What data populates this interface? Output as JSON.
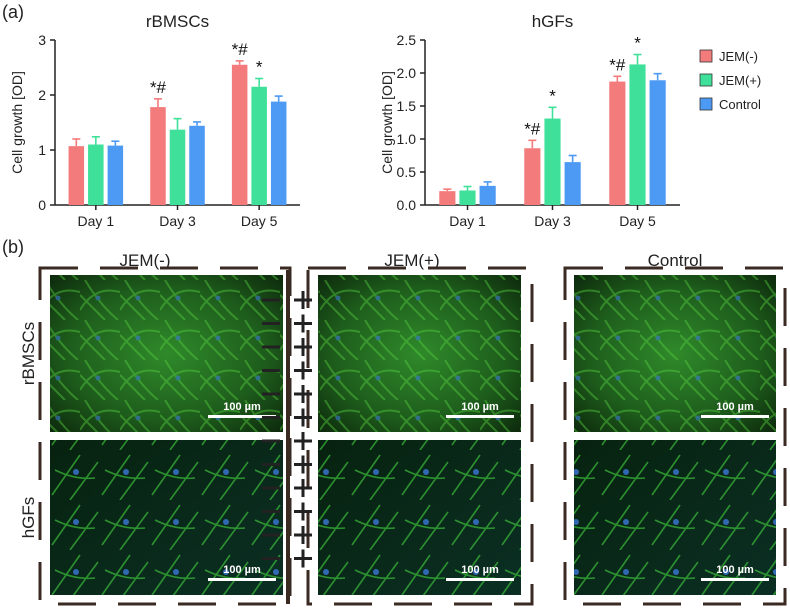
{
  "panel_a_label": "(a)",
  "chart_data": [
    {
      "type": "bar",
      "title": "rBMSCs",
      "y_label": "Cell growth [OD]",
      "categories": [
        "Day 1",
        "Day 3",
        "Day 5"
      ],
      "ylim": [
        0,
        3
      ],
      "yticks": [
        0,
        1,
        2,
        3
      ],
      "series": [
        {
          "color": "#f47b7b",
          "values": [
            1.07,
            1.78,
            2.55
          ],
          "errors": [
            0.13,
            0.15,
            0.07
          ],
          "annotations": [
            null,
            "*#",
            "*#"
          ]
        },
        {
          "color": "#3fe09a",
          "values": [
            1.1,
            1.37,
            2.15
          ],
          "errors": [
            0.14,
            0.2,
            0.15
          ],
          "annotations": [
            null,
            null,
            "*"
          ]
        },
        {
          "color": "#4d9af5",
          "values": [
            1.08,
            1.44,
            1.88
          ],
          "errors": [
            0.08,
            0.07,
            0.1
          ],
          "annotations": [
            null,
            null,
            null
          ]
        }
      ]
    },
    {
      "type": "bar",
      "title": "hGFs",
      "y_label": "Cell growth [OD]",
      "categories": [
        "Day 1",
        "Day 3",
        "Day 5"
      ],
      "ylim": [
        0,
        2.5
      ],
      "yticks": [
        {
          "value": 0,
          "label": "0.0"
        },
        0.5,
        {
          "value": 1,
          "label": "1.0"
        },
        1.5,
        {
          "value": 2,
          "label": "2.0"
        },
        2.5
      ],
      "legend": "right",
      "series": [
        {
          "name": "JEM(-)",
          "color": "#f47b7b",
          "values": [
            0.21,
            0.86,
            1.87
          ],
          "errors": [
            0.03,
            0.12,
            0.08
          ],
          "annotations": [
            null,
            "*#",
            "*#"
          ]
        },
        {
          "name": "JEM(+)",
          "color": "#3fe09a",
          "values": [
            0.22,
            1.31,
            2.13
          ],
          "errors": [
            0.06,
            0.17,
            0.15
          ],
          "annotations": [
            null,
            "*",
            "*"
          ]
        },
        {
          "name": "Control",
          "color": "#4d9af5",
          "values": [
            0.29,
            0.65,
            1.89
          ],
          "errors": [
            0.06,
            0.1,
            0.1
          ],
          "annotations": [
            null,
            null,
            null
          ]
        }
      ]
    }
  ],
  "panel_b": {
    "label": "(b)",
    "columns": [
      "JEM(-)",
      "JEM(+)",
      "Control"
    ],
    "rows": [
      "rBMSCs",
      "hGFs"
    ],
    "scale_bar": "100 µm"
  }
}
